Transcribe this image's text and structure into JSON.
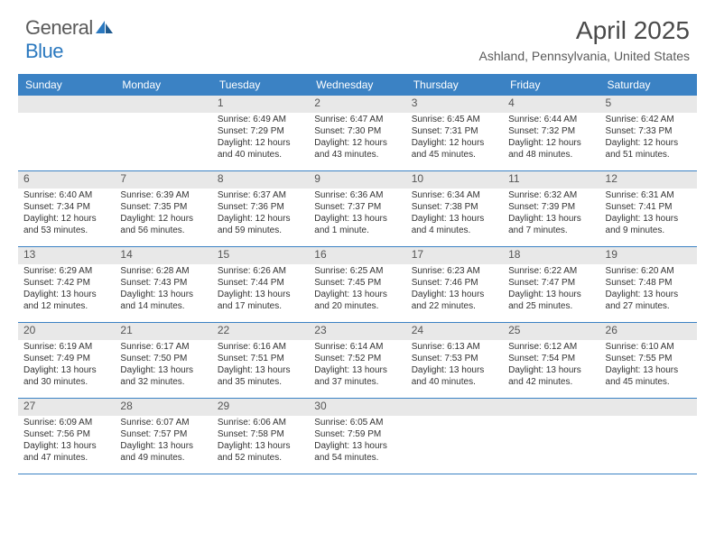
{
  "logo": {
    "text1": "General",
    "text2": "Blue"
  },
  "title": "April 2025",
  "location": "Ashland, Pennsylvania, United States",
  "colors": {
    "header_bg": "#3b82c4",
    "header_text": "#ffffff",
    "daynum_bg": "#e8e8e8",
    "daynum_text": "#555555",
    "body_text": "#333333",
    "rule": "#3b82c4",
    "logo_gray": "#5a5a5a",
    "logo_blue": "#2a78bf"
  },
  "day_names": [
    "Sunday",
    "Monday",
    "Tuesday",
    "Wednesday",
    "Thursday",
    "Friday",
    "Saturday"
  ],
  "weeks": [
    [
      null,
      null,
      {
        "n": "1",
        "sunrise": "Sunrise: 6:49 AM",
        "sunset": "Sunset: 7:29 PM",
        "daylight": "Daylight: 12 hours and 40 minutes."
      },
      {
        "n": "2",
        "sunrise": "Sunrise: 6:47 AM",
        "sunset": "Sunset: 7:30 PM",
        "daylight": "Daylight: 12 hours and 43 minutes."
      },
      {
        "n": "3",
        "sunrise": "Sunrise: 6:45 AM",
        "sunset": "Sunset: 7:31 PM",
        "daylight": "Daylight: 12 hours and 45 minutes."
      },
      {
        "n": "4",
        "sunrise": "Sunrise: 6:44 AM",
        "sunset": "Sunset: 7:32 PM",
        "daylight": "Daylight: 12 hours and 48 minutes."
      },
      {
        "n": "5",
        "sunrise": "Sunrise: 6:42 AM",
        "sunset": "Sunset: 7:33 PM",
        "daylight": "Daylight: 12 hours and 51 minutes."
      }
    ],
    [
      {
        "n": "6",
        "sunrise": "Sunrise: 6:40 AM",
        "sunset": "Sunset: 7:34 PM",
        "daylight": "Daylight: 12 hours and 53 minutes."
      },
      {
        "n": "7",
        "sunrise": "Sunrise: 6:39 AM",
        "sunset": "Sunset: 7:35 PM",
        "daylight": "Daylight: 12 hours and 56 minutes."
      },
      {
        "n": "8",
        "sunrise": "Sunrise: 6:37 AM",
        "sunset": "Sunset: 7:36 PM",
        "daylight": "Daylight: 12 hours and 59 minutes."
      },
      {
        "n": "9",
        "sunrise": "Sunrise: 6:36 AM",
        "sunset": "Sunset: 7:37 PM",
        "daylight": "Daylight: 13 hours and 1 minute."
      },
      {
        "n": "10",
        "sunrise": "Sunrise: 6:34 AM",
        "sunset": "Sunset: 7:38 PM",
        "daylight": "Daylight: 13 hours and 4 minutes."
      },
      {
        "n": "11",
        "sunrise": "Sunrise: 6:32 AM",
        "sunset": "Sunset: 7:39 PM",
        "daylight": "Daylight: 13 hours and 7 minutes."
      },
      {
        "n": "12",
        "sunrise": "Sunrise: 6:31 AM",
        "sunset": "Sunset: 7:41 PM",
        "daylight": "Daylight: 13 hours and 9 minutes."
      }
    ],
    [
      {
        "n": "13",
        "sunrise": "Sunrise: 6:29 AM",
        "sunset": "Sunset: 7:42 PM",
        "daylight": "Daylight: 13 hours and 12 minutes."
      },
      {
        "n": "14",
        "sunrise": "Sunrise: 6:28 AM",
        "sunset": "Sunset: 7:43 PM",
        "daylight": "Daylight: 13 hours and 14 minutes."
      },
      {
        "n": "15",
        "sunrise": "Sunrise: 6:26 AM",
        "sunset": "Sunset: 7:44 PM",
        "daylight": "Daylight: 13 hours and 17 minutes."
      },
      {
        "n": "16",
        "sunrise": "Sunrise: 6:25 AM",
        "sunset": "Sunset: 7:45 PM",
        "daylight": "Daylight: 13 hours and 20 minutes."
      },
      {
        "n": "17",
        "sunrise": "Sunrise: 6:23 AM",
        "sunset": "Sunset: 7:46 PM",
        "daylight": "Daylight: 13 hours and 22 minutes."
      },
      {
        "n": "18",
        "sunrise": "Sunrise: 6:22 AM",
        "sunset": "Sunset: 7:47 PM",
        "daylight": "Daylight: 13 hours and 25 minutes."
      },
      {
        "n": "19",
        "sunrise": "Sunrise: 6:20 AM",
        "sunset": "Sunset: 7:48 PM",
        "daylight": "Daylight: 13 hours and 27 minutes."
      }
    ],
    [
      {
        "n": "20",
        "sunrise": "Sunrise: 6:19 AM",
        "sunset": "Sunset: 7:49 PM",
        "daylight": "Daylight: 13 hours and 30 minutes."
      },
      {
        "n": "21",
        "sunrise": "Sunrise: 6:17 AM",
        "sunset": "Sunset: 7:50 PM",
        "daylight": "Daylight: 13 hours and 32 minutes."
      },
      {
        "n": "22",
        "sunrise": "Sunrise: 6:16 AM",
        "sunset": "Sunset: 7:51 PM",
        "daylight": "Daylight: 13 hours and 35 minutes."
      },
      {
        "n": "23",
        "sunrise": "Sunrise: 6:14 AM",
        "sunset": "Sunset: 7:52 PM",
        "daylight": "Daylight: 13 hours and 37 minutes."
      },
      {
        "n": "24",
        "sunrise": "Sunrise: 6:13 AM",
        "sunset": "Sunset: 7:53 PM",
        "daylight": "Daylight: 13 hours and 40 minutes."
      },
      {
        "n": "25",
        "sunrise": "Sunrise: 6:12 AM",
        "sunset": "Sunset: 7:54 PM",
        "daylight": "Daylight: 13 hours and 42 minutes."
      },
      {
        "n": "26",
        "sunrise": "Sunrise: 6:10 AM",
        "sunset": "Sunset: 7:55 PM",
        "daylight": "Daylight: 13 hours and 45 minutes."
      }
    ],
    [
      {
        "n": "27",
        "sunrise": "Sunrise: 6:09 AM",
        "sunset": "Sunset: 7:56 PM",
        "daylight": "Daylight: 13 hours and 47 minutes."
      },
      {
        "n": "28",
        "sunrise": "Sunrise: 6:07 AM",
        "sunset": "Sunset: 7:57 PM",
        "daylight": "Daylight: 13 hours and 49 minutes."
      },
      {
        "n": "29",
        "sunrise": "Sunrise: 6:06 AM",
        "sunset": "Sunset: 7:58 PM",
        "daylight": "Daylight: 13 hours and 52 minutes."
      },
      {
        "n": "30",
        "sunrise": "Sunrise: 6:05 AM",
        "sunset": "Sunset: 7:59 PM",
        "daylight": "Daylight: 13 hours and 54 minutes."
      },
      null,
      null,
      null
    ]
  ]
}
